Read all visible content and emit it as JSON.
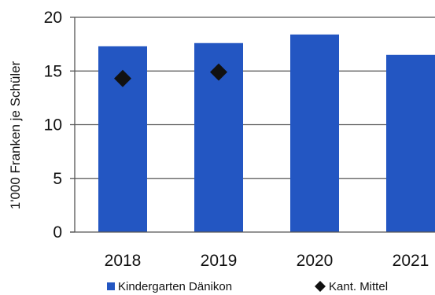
{
  "chart_data": {
    "type": "bar",
    "title": "",
    "xlabel": "",
    "ylabel": "1'000 Franken je Schüler",
    "ylim": [
      0,
      20
    ],
    "yticks": [
      0,
      5,
      10,
      15,
      20
    ],
    "grid": true,
    "legend_position": "bottom",
    "categories": [
      "2018",
      "2019",
      "2020",
      "2021"
    ],
    "series": [
      {
        "name": "Kindergarten Dänikon",
        "kind": "bar",
        "color": "#2356c2",
        "values": [
          17.3,
          17.6,
          18.4,
          16.5
        ]
      },
      {
        "name": "Kant. Mittel",
        "kind": "marker",
        "marker": "diamond",
        "color": "#111111",
        "values": [
          14.3,
          14.9,
          null,
          null
        ]
      }
    ]
  }
}
